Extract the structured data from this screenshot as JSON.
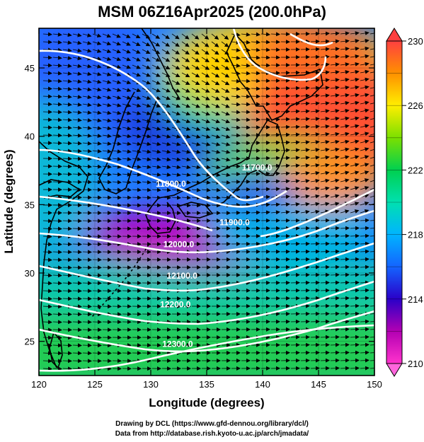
{
  "title": "MSM 06Z16Apr2025 (200.0hPa)",
  "credits": {
    "line1": "Drawing by DCL (https://www.gfd-dennou.org/library/dcl/)",
    "line2": "Data from http://database.rish.kyoto-u.ac.jp/arch/jmadata/"
  },
  "axes": {
    "xlabel": "Longitude (degrees)",
    "ylabel": "Latitude  (degrees)",
    "xlim": [
      120,
      150
    ],
    "ylim": [
      22.5,
      47.9
    ],
    "xticks": [
      "120",
      "125",
      "130",
      "135",
      "140",
      "145",
      "150"
    ],
    "yticks": [
      "25",
      "30",
      "35",
      "40",
      "45"
    ]
  },
  "colorbar": {
    "min": 210,
    "max": 230,
    "labels": [
      "230",
      "226",
      "222",
      "218",
      "214",
      "210"
    ]
  },
  "contours": [
    {
      "label": "11700.0",
      "lon": 139.5,
      "lat": 37.5
    },
    {
      "label": "11800.0",
      "lon": 131.8,
      "lat": 36.3
    },
    {
      "label": "11900.0",
      "lon": 137.5,
      "lat": 33.5
    },
    {
      "label": "12000.0",
      "lon": 132.5,
      "lat": 31.9
    },
    {
      "label": "12100.0",
      "lon": 132.8,
      "lat": 29.6
    },
    {
      "label": "12200.0",
      "lon": 132.2,
      "lat": 27.5
    },
    {
      "label": "12300.0",
      "lon": 132.4,
      "lat": 24.6
    }
  ],
  "colors": {
    "contour": "#ffffff",
    "coast": "#000000",
    "vector": "#000000"
  }
}
